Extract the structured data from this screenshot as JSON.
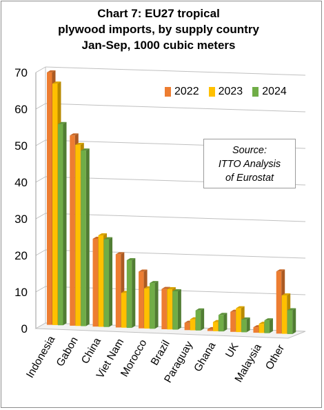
{
  "title": {
    "line1": "Chart 7: EU27 tropical",
    "line2": "plywood imports, by supply country",
    "line3": "Jan-Sep, 1000 cubic meters"
  },
  "source_box": {
    "line1": "Source:",
    "line2": "ITTO Analysis",
    "line3": "of Eurostat"
  },
  "chart_data": {
    "type": "bar",
    "title": "Chart 7: EU27 tropical plywood imports, by supply country Jan-Sep, 1000 cubic meters",
    "categories": [
      "Indonesia",
      "Gabon",
      "China",
      "Viet Nam",
      "Morocco",
      "Brazil",
      "Paraguay",
      "Ghana",
      "UK",
      "Malaysia",
      "Other"
    ],
    "series": [
      {
        "name": "2022",
        "color": "#ED7D31",
        "values": [
          69,
          52,
          24,
          20,
          15.5,
          11,
          2,
          0.5,
          5.5,
          1.5,
          17
        ]
      },
      {
        "name": "2023",
        "color": "#FFC000",
        "values": [
          66,
          49.5,
          25,
          9.5,
          11,
          11,
          3,
          2.5,
          6.5,
          2.5,
          10.5
        ]
      },
      {
        "name": "2024",
        "color": "#70AD47",
        "values": [
          55,
          48,
          24,
          18.5,
          12.5,
          10.5,
          5.5,
          4.5,
          3.5,
          3.5,
          6.5
        ]
      }
    ],
    "yticks": [
      "0",
      "10",
      "20",
      "30",
      "40",
      "50",
      "60",
      "70"
    ],
    "ylim": [
      0,
      70
    ],
    "grid": true,
    "legend_position": "top-right",
    "chart_style": "3d-clustered-column"
  }
}
